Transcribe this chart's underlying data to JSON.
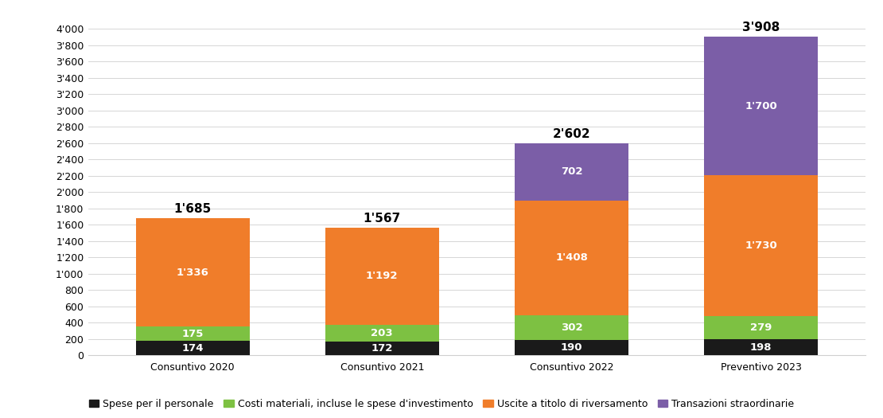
{
  "categories": [
    "Consuntivo 2020",
    "Consuntivo 2021",
    "Consuntivo 2022",
    "Preventivo 2023"
  ],
  "series": {
    "Spese per il personale": [
      174,
      172,
      190,
      198
    ],
    "Costi materiali, incluse le spese d'investimento": [
      175,
      203,
      302,
      279
    ],
    "Uscite a titolo di riversamento": [
      1336,
      1192,
      1408,
      1730
    ],
    "Transazioni straordinarie": [
      0,
      0,
      702,
      1700
    ]
  },
  "totals": [
    1685,
    1567,
    2602,
    3908
  ],
  "colors": {
    "Spese per il personale": "#1a1a1a",
    "Costi materiali, incluse le spese d'investimento": "#7dc142",
    "Uscite a titolo di riversamento": "#f07d2a",
    "Transazioni straordinarie": "#7b5ea7"
  },
  "bar_width": 0.6,
  "ylim": [
    0,
    4100
  ],
  "yticks": [
    0,
    200,
    400,
    600,
    800,
    1000,
    1200,
    1400,
    1600,
    1800,
    2000,
    2200,
    2400,
    2600,
    2800,
    3000,
    3200,
    3400,
    3600,
    3800,
    4000
  ],
  "ytick_labels": [
    "0",
    "200",
    "400",
    "600",
    "800",
    "1'000",
    "1'200",
    "1'400",
    "1'600",
    "1'800",
    "2'000",
    "2'200",
    "2'400",
    "2'600",
    "2'800",
    "3'000",
    "3'200",
    "3'400",
    "3'600",
    "3'800",
    "4'000"
  ],
  "background_color": "#ffffff",
  "grid_color": "#d0d0d0",
  "label_fontsize": 9,
  "total_fontsize": 11,
  "segment_label_fontsize": 9.5,
  "legend_fontsize": 9,
  "figure_width": 11.1,
  "figure_height": 5.25,
  "dpi": 100
}
